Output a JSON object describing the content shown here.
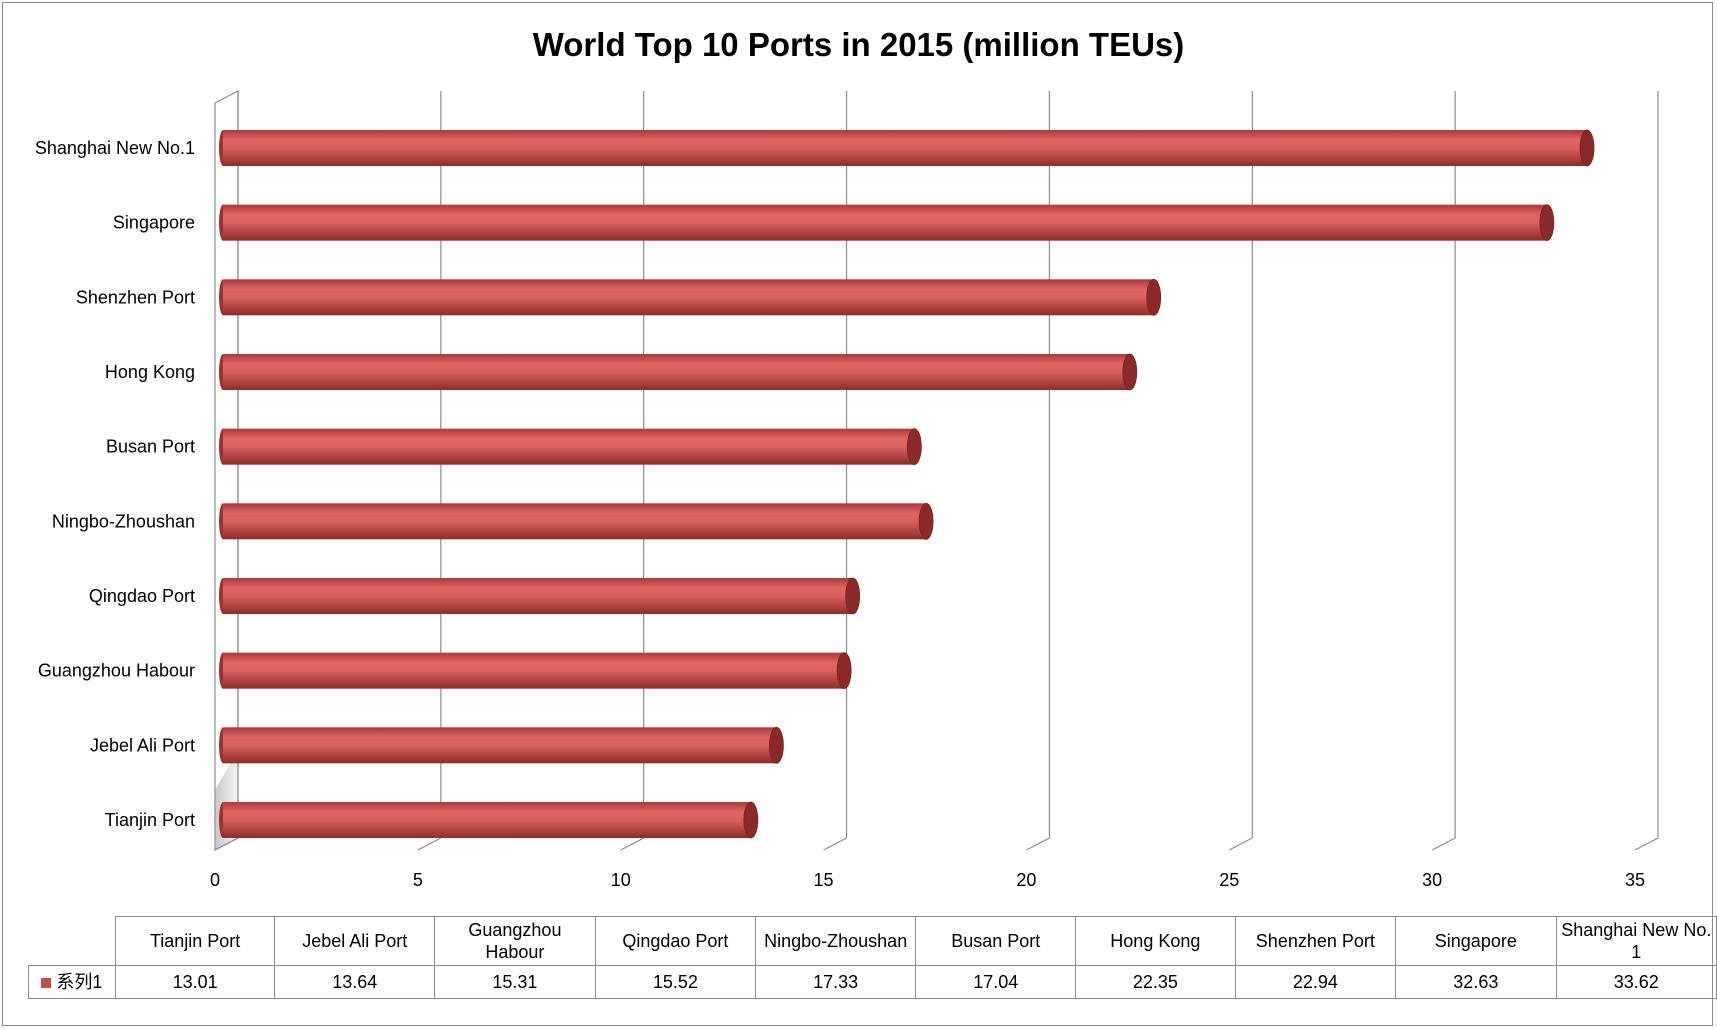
{
  "chart_data": {
    "type": "bar",
    "orientation": "horizontal",
    "title": "World Top 10 Ports in 2015 (million TEUs)",
    "categories": [
      "Tianjin Port",
      "Jebel Ali Port",
      "Guangzhou Habour",
      "Qingdao Port",
      "Ningbo-Zhoushan",
      "Busan Port",
      "Hong Kong",
      "Shenzhen Port",
      "Singapore",
      "Shanghai New No.1"
    ],
    "table_headers": [
      "Tianjin Port",
      "Jebel Ali Port",
      "Guangzhou Habour",
      "Qingdao Port",
      "Ningbo-Zhoushan",
      "Busan Port",
      "Hong Kong",
      "Shenzhen Port",
      "Singapore",
      "Shanghai New No. 1"
    ],
    "series": [
      {
        "name": "系列1",
        "values": [
          13.01,
          13.64,
          15.31,
          15.52,
          17.33,
          17.04,
          22.35,
          22.94,
          32.63,
          33.62
        ],
        "color": "#c0504d"
      }
    ],
    "value_labels": [
      "13.01",
      "13.64",
      "15.31",
      "15.52",
      "17.33",
      "17.04",
      "22.35",
      "22.94",
      "32.63",
      "33.62"
    ],
    "xlim": [
      0,
      35
    ],
    "x_ticks": [
      0,
      5,
      10,
      15,
      20,
      25,
      30,
      35
    ],
    "grid": true,
    "style": "3d-cylinder",
    "legend": "data-table-bottom"
  }
}
